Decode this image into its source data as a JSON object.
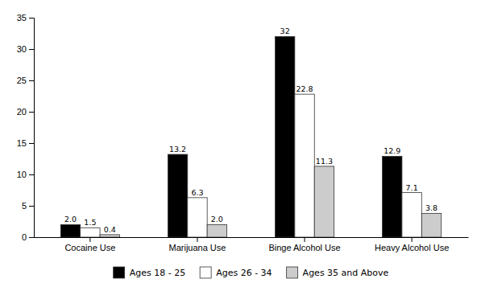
{
  "chart_data": {
    "type": "bar",
    "categories": [
      "Cocaine Use",
      "Marijuana Use",
      "Binge Alcohol Use",
      "Heavy Alcohol Use"
    ],
    "series": [
      {
        "name": "Ages 18 - 25",
        "color": "#000000",
        "values": [
          2.0,
          13.2,
          32.0,
          12.9
        ],
        "value_labels": [
          "2.0",
          "13.2",
          "32",
          "12.9"
        ]
      },
      {
        "name": "Ages 26 - 34",
        "color": "#ffffff",
        "values": [
          1.5,
          6.3,
          22.8,
          7.1
        ],
        "value_labels": [
          "1.5",
          "6.3",
          "22.8",
          "7.1"
        ]
      },
      {
        "name": "Ages 35 and Above",
        "color": "#cccccc",
        "values": [
          0.4,
          2.0,
          11.3,
          3.8
        ],
        "value_labels": [
          "0.4",
          "2.0",
          "11.3",
          "3.8"
        ]
      }
    ],
    "ylim": [
      0,
      35
    ],
    "yticks": [
      0,
      5,
      10,
      15,
      20,
      25,
      30,
      35
    ],
    "grid": false,
    "legend": "bottom",
    "data_labels": true
  }
}
